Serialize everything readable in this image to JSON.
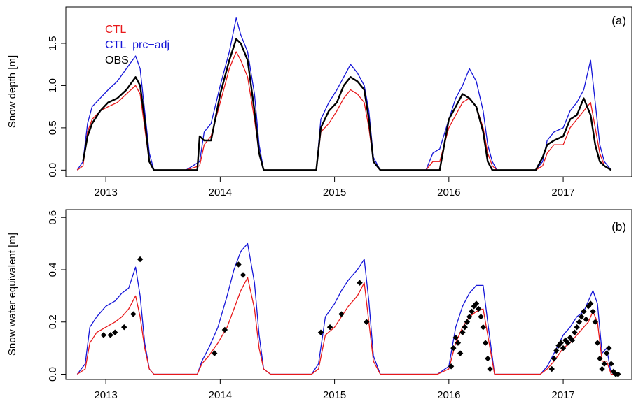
{
  "colors": {
    "CTL": "#e8191b",
    "CTL_prc-adj": "#1515d8",
    "OBS": "#000000"
  },
  "chart_data": [
    {
      "type": "line",
      "panel_label": "(a)",
      "ylabel": "Snow depth [m]",
      "xlim": [
        2012.65,
        2017.6
      ],
      "ylim": [
        -0.08,
        1.93
      ],
      "x_ticks": [
        2013,
        2014,
        2015,
        2016,
        2017
      ],
      "x_tick_labels": [
        "2013",
        "2014",
        "2015",
        "2016",
        "2017"
      ],
      "y_ticks": [
        0.0,
        0.5,
        1.0,
        1.5
      ],
      "y_tick_labels": [
        "0.0",
        "0.5",
        "1.0",
        "1.5"
      ],
      "legend": {
        "placement": "top-left",
        "entries": [
          "CTL",
          "CTL_prc−adj",
          "OBS"
        ]
      },
      "series": [
        {
          "name": "CTL",
          "color": "#e8191b",
          "x": [
            2012.75,
            2012.8,
            2012.84,
            2012.88,
            2012.95,
            2013.02,
            2013.1,
            2013.18,
            2013.26,
            2013.3,
            2013.34,
            2013.38,
            2013.42,
            2013.5,
            2013.7,
            2013.82,
            2013.86,
            2013.92,
            2014.0,
            2014.08,
            2014.14,
            2014.18,
            2014.24,
            2014.3,
            2014.34,
            2014.38,
            2014.44,
            2014.7,
            2014.84,
            2014.88,
            2014.95,
            2015.02,
            2015.08,
            2015.14,
            2015.2,
            2015.26,
            2015.3,
            2015.34,
            2015.4,
            2015.8,
            2015.86,
            2015.92,
            2016.0,
            2016.06,
            2016.12,
            2016.18,
            2016.24,
            2016.3,
            2016.34,
            2016.38,
            2016.42,
            2016.5,
            2016.76,
            2016.82,
            2016.86,
            2016.92,
            2017.0,
            2017.06,
            2017.12,
            2017.18,
            2017.24,
            2017.28,
            2017.32,
            2017.36,
            2017.42
          ],
          "y": [
            0.0,
            0.05,
            0.45,
            0.6,
            0.7,
            0.75,
            0.8,
            0.9,
            1.0,
            0.9,
            0.5,
            0.1,
            0.0,
            0.0,
            0.0,
            0.05,
            0.3,
            0.4,
            0.8,
            1.2,
            1.4,
            1.3,
            1.1,
            0.6,
            0.2,
            0.0,
            0.0,
            0.0,
            0.0,
            0.45,
            0.55,
            0.7,
            0.85,
            0.95,
            0.9,
            0.8,
            0.5,
            0.1,
            0.0,
            0.0,
            0.1,
            0.1,
            0.5,
            0.65,
            0.8,
            0.85,
            0.75,
            0.5,
            0.2,
            0.05,
            0.0,
            0.0,
            0.0,
            0.05,
            0.2,
            0.3,
            0.3,
            0.5,
            0.6,
            0.7,
            0.8,
            0.5,
            0.2,
            0.05,
            0.0
          ]
        },
        {
          "name": "CTL_prc−adj",
          "color": "#1515d8",
          "x": [
            2012.75,
            2012.8,
            2012.84,
            2012.88,
            2012.95,
            2013.02,
            2013.1,
            2013.18,
            2013.26,
            2013.3,
            2013.34,
            2013.38,
            2013.42,
            2013.5,
            2013.7,
            2013.82,
            2013.86,
            2013.92,
            2014.0,
            2014.08,
            2014.14,
            2014.18,
            2014.24,
            2014.3,
            2014.34,
            2014.38,
            2014.44,
            2014.7,
            2014.84,
            2014.88,
            2014.95,
            2015.02,
            2015.08,
            2015.14,
            2015.2,
            2015.26,
            2015.3,
            2015.34,
            2015.4,
            2015.8,
            2015.86,
            2015.92,
            2016.0,
            2016.06,
            2016.12,
            2016.18,
            2016.24,
            2016.3,
            2016.34,
            2016.38,
            2016.42,
            2016.5,
            2016.76,
            2016.82,
            2016.86,
            2016.92,
            2017.0,
            2017.06,
            2017.12,
            2017.18,
            2017.24,
            2017.28,
            2017.32,
            2017.36,
            2017.42
          ],
          "y": [
            0.0,
            0.1,
            0.55,
            0.75,
            0.85,
            0.95,
            1.05,
            1.2,
            1.35,
            1.2,
            0.7,
            0.2,
            0.0,
            0.0,
            0.0,
            0.1,
            0.45,
            0.55,
            1.0,
            1.4,
            1.8,
            1.6,
            1.4,
            0.9,
            0.3,
            0.0,
            0.0,
            0.0,
            0.0,
            0.6,
            0.8,
            0.95,
            1.1,
            1.25,
            1.15,
            1.0,
            0.7,
            0.15,
            0.0,
            0.0,
            0.2,
            0.25,
            0.6,
            0.85,
            1.0,
            1.2,
            1.05,
            0.7,
            0.3,
            0.1,
            0.0,
            0.0,
            0.0,
            0.1,
            0.35,
            0.45,
            0.5,
            0.7,
            0.8,
            0.95,
            1.3,
            0.8,
            0.3,
            0.1,
            0.0
          ]
        },
        {
          "name": "OBS",
          "color": "#000000",
          "x": [
            2012.8,
            2012.84,
            2012.88,
            2012.95,
            2013.02,
            2013.1,
            2013.18,
            2013.26,
            2013.3,
            2013.34,
            2013.38,
            2013.42,
            2013.5,
            2013.7,
            2013.8,
            2013.82,
            2013.86,
            2013.92,
            2014.0,
            2014.08,
            2014.14,
            2014.18,
            2014.24,
            2014.3,
            2014.34,
            2014.38,
            2014.44,
            2014.7,
            2014.84,
            2014.88,
            2014.95,
            2015.02,
            2015.08,
            2015.14,
            2015.2,
            2015.26,
            2015.3,
            2015.34,
            2015.4,
            2015.8,
            2015.86,
            2015.92,
            2016.0,
            2016.06,
            2016.12,
            2016.18,
            2016.24,
            2016.3,
            2016.34,
            2016.38,
            2016.42,
            2016.5,
            2016.76,
            2016.82,
            2016.86,
            2016.92,
            2017.0,
            2017.06,
            2017.12,
            2017.18,
            2017.24,
            2017.28,
            2017.32,
            2017.36,
            2017.42
          ],
          "y": [
            0.1,
            0.4,
            0.55,
            0.7,
            0.8,
            0.85,
            0.95,
            1.1,
            1.0,
            0.6,
            0.1,
            0.0,
            0.0,
            0.0,
            0.0,
            0.4,
            0.35,
            0.35,
            0.9,
            1.3,
            1.55,
            1.5,
            1.3,
            0.7,
            0.2,
            0.0,
            0.0,
            0.0,
            0.0,
            0.5,
            0.7,
            0.8,
            1.0,
            1.1,
            1.05,
            0.95,
            0.6,
            0.1,
            0.0,
            0.0,
            0.0,
            0.0,
            0.6,
            0.75,
            0.9,
            0.85,
            0.75,
            0.45,
            0.1,
            0.0,
            0.0,
            0.0,
            0.0,
            0.15,
            0.3,
            0.35,
            0.4,
            0.6,
            0.65,
            0.85,
            0.65,
            0.3,
            0.1,
            0.05,
            0.0
          ]
        }
      ]
    },
    {
      "type": "line",
      "panel_label": "(b)",
      "ylabel": "Snow water equivalent [m]",
      "xlim": [
        2012.65,
        2017.6
      ],
      "ylim": [
        -0.02,
        0.63
      ],
      "x_ticks": [
        2013,
        2014,
        2015,
        2016,
        2017
      ],
      "x_tick_labels": [
        "2013",
        "2014",
        "2015",
        "2016",
        "2017"
      ],
      "y_ticks": [
        0.0,
        0.2,
        0.4,
        0.6
      ],
      "y_tick_labels": [
        "0.0",
        "0.2",
        "0.4",
        "0.6"
      ],
      "series": [
        {
          "name": "CTL",
          "color": "#e8191b",
          "x": [
            2012.75,
            2012.82,
            2012.86,
            2012.92,
            2013.0,
            2013.08,
            2013.14,
            2013.2,
            2013.26,
            2013.3,
            2013.34,
            2013.38,
            2013.42,
            2013.5,
            2013.8,
            2013.84,
            2013.9,
            2013.98,
            2014.06,
            2014.12,
            2014.18,
            2014.24,
            2014.3,
            2014.34,
            2014.38,
            2014.44,
            2014.8,
            2014.86,
            2014.92,
            2015.0,
            2015.06,
            2015.12,
            2015.2,
            2015.26,
            2015.3,
            2015.34,
            2015.4,
            2015.9,
            2016.0,
            2016.06,
            2016.12,
            2016.18,
            2016.24,
            2016.3,
            2016.34,
            2016.4,
            2016.8,
            2016.86,
            2016.92,
            2017.0,
            2017.06,
            2017.12,
            2017.18,
            2017.22,
            2017.26,
            2017.3,
            2017.34,
            2017.38,
            2017.42,
            2017.5
          ],
          "y": [
            0.0,
            0.02,
            0.12,
            0.16,
            0.18,
            0.2,
            0.22,
            0.25,
            0.3,
            0.22,
            0.1,
            0.02,
            0.0,
            0.0,
            0.0,
            0.04,
            0.07,
            0.12,
            0.18,
            0.25,
            0.32,
            0.37,
            0.25,
            0.1,
            0.02,
            0.0,
            0.0,
            0.02,
            0.15,
            0.18,
            0.22,
            0.26,
            0.3,
            0.35,
            0.2,
            0.05,
            0.0,
            0.0,
            0.02,
            0.12,
            0.18,
            0.22,
            0.24,
            0.25,
            0.15,
            0.0,
            0.0,
            0.02,
            0.05,
            0.1,
            0.12,
            0.15,
            0.18,
            0.2,
            0.24,
            0.2,
            0.05,
            0.05,
            0.0,
            0.0
          ]
        },
        {
          "name": "CTL_prc−adj",
          "color": "#1515d8",
          "x": [
            2012.75,
            2012.82,
            2012.86,
            2012.92,
            2013.0,
            2013.08,
            2013.14,
            2013.2,
            2013.26,
            2013.3,
            2013.34,
            2013.38,
            2013.42,
            2013.5,
            2013.8,
            2013.84,
            2013.9,
            2013.98,
            2014.06,
            2014.12,
            2014.18,
            2014.24,
            2014.3,
            2014.34,
            2014.38,
            2014.44,
            2014.8,
            2014.86,
            2014.92,
            2015.0,
            2015.06,
            2015.12,
            2015.2,
            2015.26,
            2015.3,
            2015.34,
            2015.4,
            2015.9,
            2016.0,
            2016.06,
            2016.12,
            2016.18,
            2016.24,
            2016.3,
            2016.34,
            2016.4,
            2016.8,
            2016.86,
            2016.92,
            2017.0,
            2017.06,
            2017.12,
            2017.18,
            2017.22,
            2017.26,
            2017.3,
            2017.34,
            2017.38,
            2017.42,
            2017.5
          ],
          "y": [
            0.0,
            0.04,
            0.18,
            0.22,
            0.26,
            0.28,
            0.31,
            0.33,
            0.41,
            0.3,
            0.12,
            0.02,
            0.0,
            0.0,
            0.0,
            0.05,
            0.1,
            0.18,
            0.3,
            0.4,
            0.47,
            0.5,
            0.35,
            0.15,
            0.02,
            0.0,
            0.0,
            0.04,
            0.22,
            0.27,
            0.32,
            0.36,
            0.4,
            0.44,
            0.28,
            0.07,
            0.0,
            0.0,
            0.03,
            0.18,
            0.26,
            0.31,
            0.34,
            0.34,
            0.2,
            0.0,
            0.0,
            0.03,
            0.08,
            0.15,
            0.18,
            0.22,
            0.24,
            0.28,
            0.32,
            0.27,
            0.08,
            0.1,
            0.0,
            0.0
          ]
        },
        {
          "name": "OBS",
          "color": "#000000",
          "marker": "diamond",
          "x": [
            2012.98,
            2013.04,
            2013.08,
            2013.16,
            2013.24,
            2013.3,
            2013.95,
            2014.04,
            2014.16,
            2014.2,
            2014.88,
            2014.96,
            2015.06,
            2015.22,
            2015.28,
            2016.02,
            2016.04,
            2016.06,
            2016.08,
            2016.1,
            2016.12,
            2016.14,
            2016.16,
            2016.18,
            2016.2,
            2016.22,
            2016.24,
            2016.26,
            2016.28,
            2016.3,
            2016.32,
            2016.34,
            2016.36,
            2016.9,
            2016.92,
            2016.94,
            2016.96,
            2016.98,
            2017.0,
            2017.02,
            2017.04,
            2017.06,
            2017.08,
            2017.1,
            2017.12,
            2017.14,
            2017.16,
            2017.18,
            2017.2,
            2017.22,
            2017.24,
            2017.26,
            2017.28,
            2017.3,
            2017.32,
            2017.34,
            2017.36,
            2017.38,
            2017.4,
            2017.42,
            2017.44,
            2017.46,
            2017.48
          ],
          "y": [
            0.15,
            0.15,
            0.16,
            0.18,
            0.23,
            0.44,
            0.08,
            0.17,
            0.42,
            0.38,
            0.16,
            0.18,
            0.23,
            0.35,
            0.2,
            0.03,
            0.1,
            0.14,
            0.12,
            0.08,
            0.16,
            0.18,
            0.2,
            0.22,
            0.24,
            0.26,
            0.27,
            0.25,
            0.22,
            0.18,
            0.12,
            0.06,
            0.02,
            0.02,
            0.06,
            0.09,
            0.11,
            0.12,
            0.1,
            0.13,
            0.12,
            0.14,
            0.13,
            0.16,
            0.18,
            0.2,
            0.22,
            0.24,
            0.21,
            0.26,
            0.27,
            0.24,
            0.2,
            0.12,
            0.06,
            0.02,
            0.04,
            0.08,
            0.1,
            0.04,
            0.01,
            0.0,
            0.0
          ]
        }
      ]
    }
  ]
}
